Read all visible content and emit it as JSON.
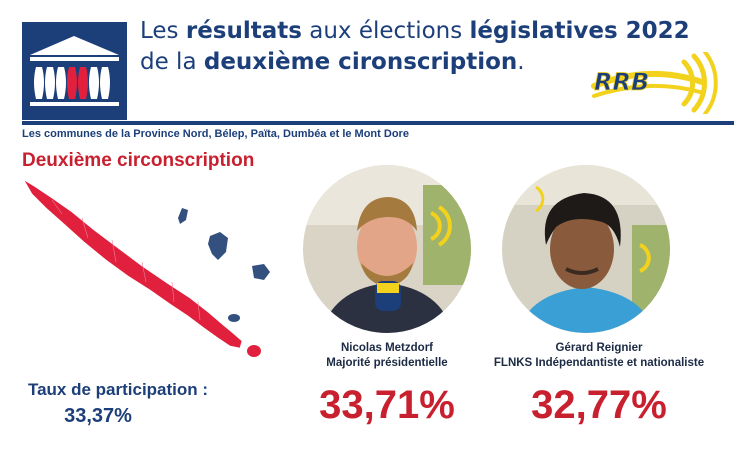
{
  "header": {
    "title_line1": {
      "part1": "Les ",
      "bold1": "résultats",
      "part2": " aux élections ",
      "bold2": "législatives 2022"
    },
    "title_line2": {
      "part1": "de la ",
      "bold1": "deuxième cironscription",
      "part2": "."
    },
    "logo_icon": "assemblee-nationale-logo-icon",
    "broadcaster_logo": "RRB"
  },
  "communes": "Les communes de la Province Nord, Bélep, Païta, Dumbéa et le Mont Dore",
  "section_title": "Deuxième circonscription",
  "participation": {
    "label": "Taux de participation :",
    "value": "33,37%"
  },
  "candidates": [
    {
      "name": "Nicolas Metzdorf",
      "party": "Majorité présidentielle",
      "score": "33,71%"
    },
    {
      "name": "Gérard Reignier",
      "party": "FLNKS Indépendantiste et nationaliste",
      "score": "32,77%"
    }
  ],
  "colors": {
    "navy": "#1c3f7a",
    "red": "#c8202f",
    "map_highlight": "#e0203c",
    "map_other": "#34507e",
    "rrb_yellow": "#f2d21c"
  }
}
